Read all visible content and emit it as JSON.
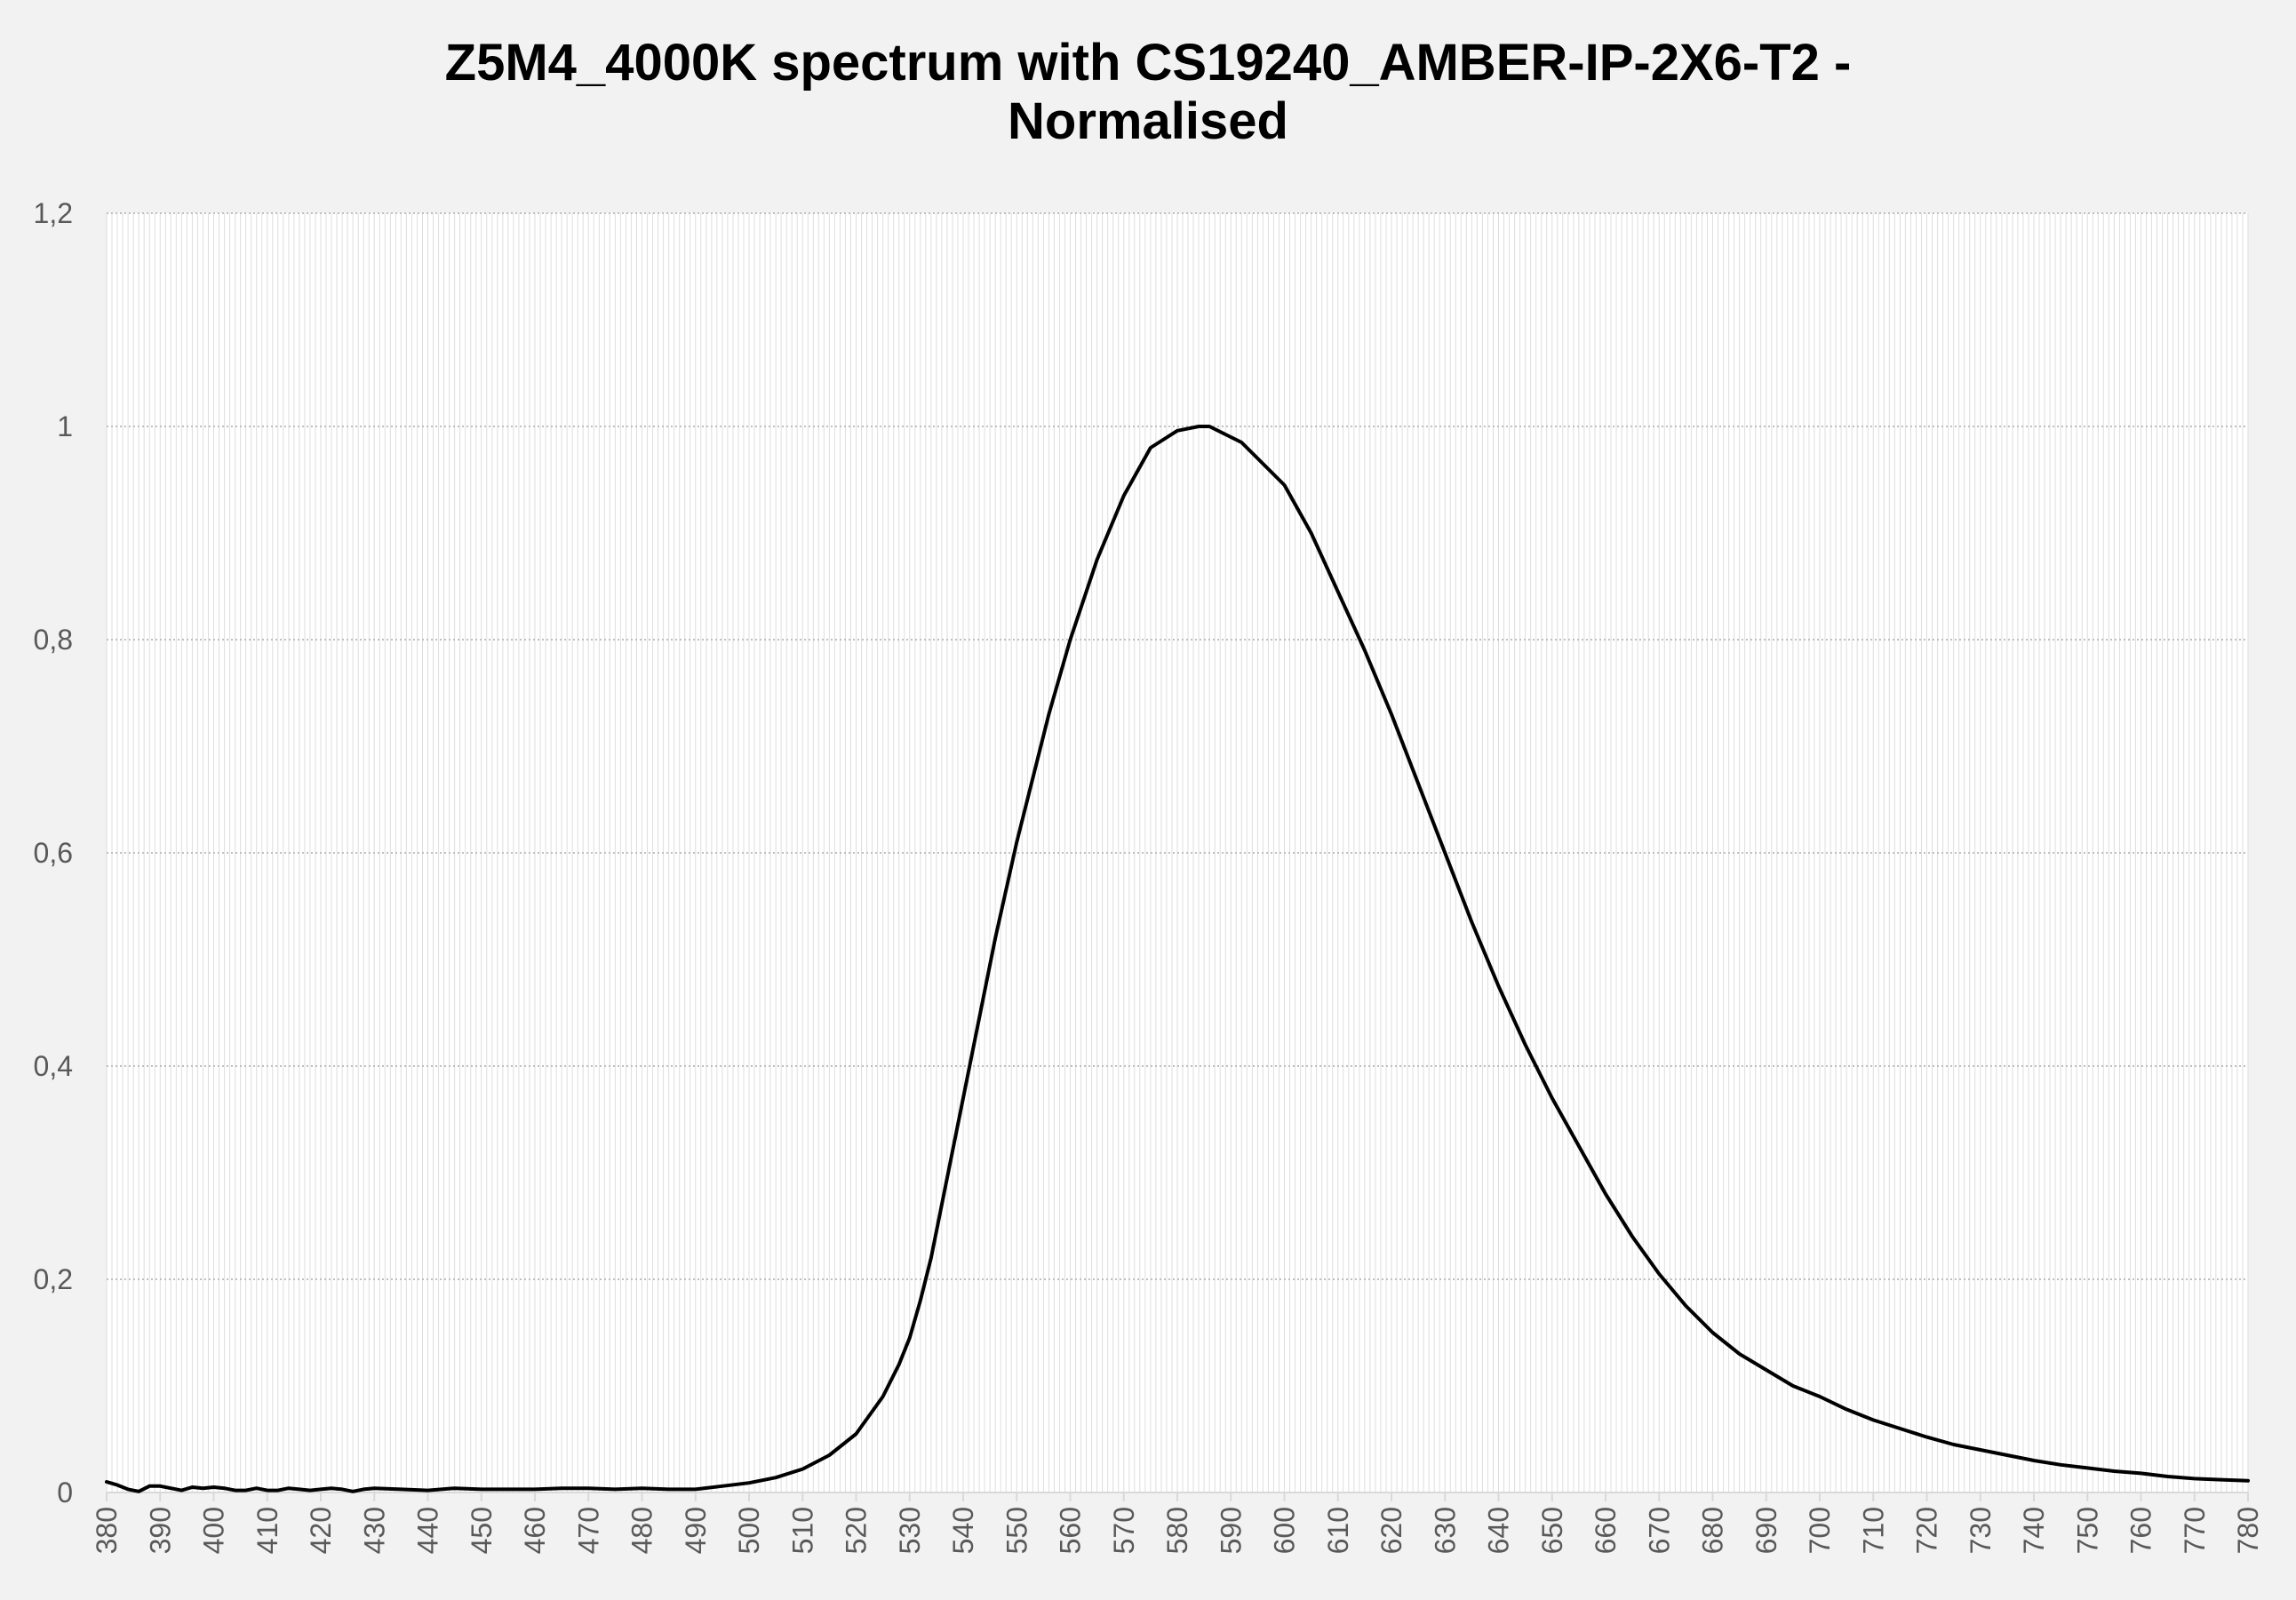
{
  "chart_data": {
    "type": "line",
    "title_lines": [
      "Z5M4_4000K spectrum with CS19240_AMBER-IP-2X6-T2 -",
      "Normalised"
    ],
    "xlabel": "",
    "ylabel": "",
    "xlim": [
      380,
      780
    ],
    "ylim": [
      0,
      1.2
    ],
    "y_ticks": [
      "0",
      "0,2",
      "0,4",
      "0,6",
      "0,8",
      "1",
      "1,2"
    ],
    "y_tick_values": [
      0,
      0.2,
      0.4,
      0.6,
      0.8,
      1.0,
      1.2
    ],
    "x_ticks": [
      "380",
      "390",
      "400",
      "410",
      "420",
      "430",
      "440",
      "450",
      "460",
      "470",
      "480",
      "490",
      "500",
      "510",
      "520",
      "530",
      "540",
      "550",
      "560",
      "570",
      "580",
      "590",
      "600",
      "610",
      "620",
      "630",
      "640",
      "650",
      "660",
      "670",
      "680",
      "690",
      "700",
      "710",
      "720",
      "730",
      "740",
      "750",
      "760",
      "770",
      "780"
    ],
    "grid": true,
    "legend": "none",
    "line_color": "#000000",
    "series": [
      {
        "x": [
          380,
          382,
          384,
          386,
          388,
          390,
          392,
          394,
          396,
          398,
          400,
          402,
          404,
          406,
          408,
          410,
          412,
          414,
          416,
          418,
          420,
          422,
          424,
          426,
          428,
          430,
          435,
          440,
          445,
          450,
          455,
          460,
          465,
          470,
          475,
          480,
          485,
          490,
          495,
          500,
          505,
          510,
          515,
          520,
          525,
          528,
          530,
          532,
          534,
          536,
          538,
          540,
          542,
          544,
          546,
          548,
          550,
          552,
          554,
          556,
          558,
          560,
          565,
          570,
          575,
          580,
          582,
          584,
          586,
          588,
          590,
          592,
          594,
          596,
          598,
          600,
          605,
          610,
          615,
          620,
          625,
          630,
          635,
          640,
          645,
          650,
          655,
          660,
          665,
          670,
          675,
          680,
          685,
          690,
          695,
          700,
          705,
          710,
          715,
          720,
          725,
          730,
          735,
          740,
          745,
          750,
          755,
          760,
          765,
          770,
          775,
          780
        ],
        "y": [
          0.01,
          0.007,
          0.003,
          0.001,
          0.006,
          0.006,
          0.004,
          0.002,
          0.005,
          0.004,
          0.005,
          0.004,
          0.002,
          0.002,
          0.004,
          0.002,
          0.002,
          0.004,
          0.003,
          0.002,
          0.003,
          0.004,
          0.003,
          0.001,
          0.003,
          0.004,
          0.003,
          0.002,
          0.004,
          0.003,
          0.003,
          0.003,
          0.004,
          0.004,
          0.003,
          0.004,
          0.003,
          0.003,
          0.006,
          0.009,
          0.014,
          0.022,
          0.035,
          0.055,
          0.09,
          0.12,
          0.145,
          0.18,
          0.22,
          0.27,
          0.32,
          0.37,
          0.42,
          0.47,
          0.52,
          0.565,
          0.61,
          0.65,
          0.69,
          0.73,
          0.765,
          0.8,
          0.875,
          0.935,
          0.98,
          0.996,
          0.998,
          1.0,
          1.0,
          0.995,
          0.99,
          0.985,
          0.975,
          0.965,
          0.955,
          0.945,
          0.9,
          0.845,
          0.79,
          0.73,
          0.665,
          0.6,
          0.535,
          0.475,
          0.42,
          0.37,
          0.325,
          0.28,
          0.24,
          0.205,
          0.175,
          0.15,
          0.13,
          0.115,
          0.1,
          0.09,
          0.078,
          0.068,
          0.06,
          0.052,
          0.045,
          0.04,
          0.035,
          0.03,
          0.026,
          0.023,
          0.02,
          0.018,
          0.015,
          0.013,
          0.012,
          0.011
        ]
      }
    ]
  }
}
